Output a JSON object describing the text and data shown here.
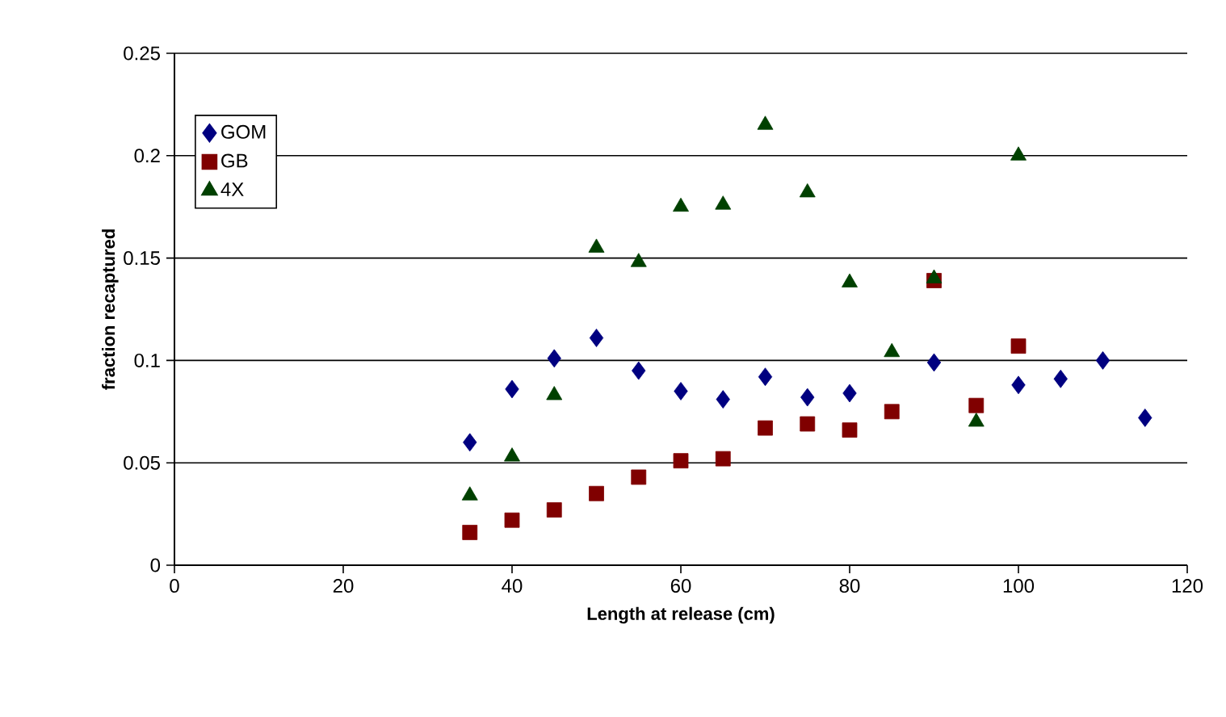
{
  "chart_data": {
    "type": "scatter",
    "xlabel": "Length at release (cm)",
    "ylabel": "fraction recaptured",
    "xlim": [
      0,
      120
    ],
    "xticks": [
      0,
      20,
      40,
      60,
      80,
      100,
      120
    ],
    "ylim": [
      0,
      0.25
    ],
    "yticks": [
      0,
      0.05,
      0.1,
      0.15,
      0.2,
      0.25
    ],
    "grid": "y",
    "legend": "top left",
    "series": [
      {
        "name": "GOM",
        "color": "#000080",
        "marker": "diamond",
        "x": [
          35,
          40,
          45,
          50,
          55,
          60,
          65,
          70,
          75,
          80,
          85,
          90,
          95,
          100,
          105,
          110,
          115
        ],
        "values": [
          0.06,
          0.086,
          0.101,
          0.111,
          0.095,
          0.085,
          0.081,
          0.092,
          0.082,
          0.084,
          null,
          0.099,
          null,
          0.088,
          0.091,
          0.1,
          0.072
        ]
      },
      {
        "name": "GB",
        "color": "#800000",
        "marker": "square",
        "x": [
          35,
          40,
          45,
          50,
          55,
          60,
          65,
          70,
          75,
          80,
          85,
          90,
          95,
          100
        ],
        "values": [
          0.016,
          0.022,
          0.027,
          0.035,
          0.043,
          0.051,
          0.052,
          0.067,
          0.069,
          0.066,
          0.075,
          0.139,
          0.078,
          0.107
        ]
      },
      {
        "name": "4X",
        "color": "#004000",
        "marker": "triangle",
        "x": [
          35,
          40,
          45,
          50,
          55,
          60,
          65,
          70,
          75,
          80,
          85,
          90,
          95,
          100
        ],
        "values": [
          0.034,
          0.053,
          0.083,
          0.155,
          0.148,
          0.175,
          0.176,
          0.215,
          0.182,
          0.138,
          0.104,
          0.14,
          0.07,
          0.2
        ]
      }
    ]
  }
}
